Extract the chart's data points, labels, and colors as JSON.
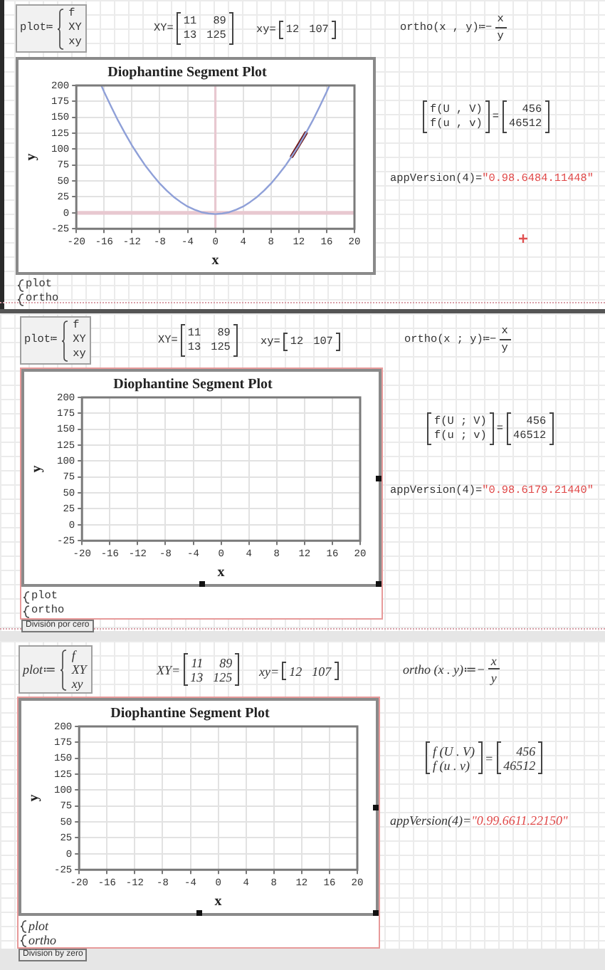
{
  "chart_data": [
    {
      "type": "line",
      "title": "Diophantine Segment Plot",
      "xlabel": "x",
      "ylabel": "y",
      "xlim": [
        -20,
        20
      ],
      "xticks": [
        -20,
        -16,
        -12,
        -8,
        -4,
        0,
        4,
        8,
        12,
        16,
        20
      ],
      "ylim": [
        -25,
        200
      ],
      "yticks": [
        -25,
        0,
        25,
        50,
        75,
        100,
        125,
        150,
        175,
        200
      ],
      "grid": true,
      "series": [
        {
          "color": "#8fa0d8",
          "x": [
            -16.4,
            -16,
            -15,
            -14,
            -13,
            -12,
            -11,
            -10,
            -9,
            -8,
            -7,
            -6,
            -5,
            -4,
            -3,
            -2,
            -1,
            0,
            1,
            2,
            3,
            4,
            5,
            6,
            7,
            8,
            9,
            10,
            11,
            12,
            13,
            14,
            15,
            16,
            16.4
          ],
          "values": [
            200,
            190,
            167,
            145,
            125,
            106,
            89,
            73,
            59,
            46,
            35,
            25,
            17,
            10,
            5,
            1,
            -1,
            -2,
            -1,
            1,
            5,
            10,
            17,
            25,
            35,
            46,
            59,
            73,
            89,
            106,
            125,
            145,
            167,
            190,
            200
          ]
        },
        {
          "color": "#701818",
          "x": [
            11,
            13
          ],
          "values": [
            89,
            125
          ]
        }
      ],
      "ref_lines": [
        {
          "axis": "x",
          "value": 0,
          "color": "#e8c8d0"
        },
        {
          "axis": "y",
          "value": 0,
          "color": "#e8c8d0"
        }
      ],
      "annotations": [
        "plot≔",
        "f",
        "XY",
        "xy",
        "XY=",
        "11",
        "89",
        "13",
        "125",
        "xy=",
        "12",
        "107",
        "ortho(x , y)≔−",
        "x",
        "y",
        "f(U , V)",
        "f(u , v)",
        "=",
        "456",
        "46512",
        "appVersion(4)=",
        "\"0.98.6484.11448\"",
        "plot",
        "ortho"
      ]
    },
    {
      "type": "line",
      "title": "Diophantine Segment Plot",
      "xlabel": "x",
      "ylabel": "y",
      "xlim": [
        -20,
        20
      ],
      "xticks": [
        -20,
        -16,
        -12,
        -8,
        -4,
        0,
        4,
        8,
        12,
        16,
        20
      ],
      "ylim": [
        -25,
        200
      ],
      "yticks": [
        -25,
        0,
        25,
        50,
        75,
        100,
        125,
        150,
        175,
        200
      ],
      "grid": true,
      "annotations": [
        "plot≔",
        "f",
        "XY",
        "xy",
        "XY=",
        "11",
        "89",
        "13",
        "125",
        "xy=",
        "12",
        "107",
        "ortho(x ; y)≔−",
        "x",
        "y",
        "f(U ; V)",
        "f(u ; v)",
        "=",
        "456",
        "46512",
        "appVersion(4)=",
        "\"0.98.6179.21440\"",
        "plot",
        "ortho",
        "División por cero"
      ]
    },
    {
      "type": "line",
      "title": "Diophantine Segment Plot",
      "xlabel": "x",
      "ylabel": "y",
      "xlim": [
        -20,
        20
      ],
      "xticks": [
        -20,
        -16,
        -12,
        -8,
        -4,
        0,
        4,
        8,
        12,
        16,
        20
      ],
      "ylim": [
        -25,
        200
      ],
      "yticks": [
        -25,
        0,
        25,
        50,
        75,
        100,
        125,
        150,
        175,
        200
      ],
      "grid": true,
      "annotations": [
        "plot≔",
        "f",
        "XY",
        "xy",
        "XY=",
        "11",
        "89",
        "13",
        "125",
        "xy=",
        "12",
        "107",
        "ortho (x . y)≔−",
        "x",
        "y",
        "f (U . V)",
        "f (u . v)",
        "=",
        "456",
        "46512",
        "appVersion(4)=",
        "\"0.99.6611.22150\"",
        "plot",
        "ortho",
        "Division by zero"
      ]
    }
  ]
}
